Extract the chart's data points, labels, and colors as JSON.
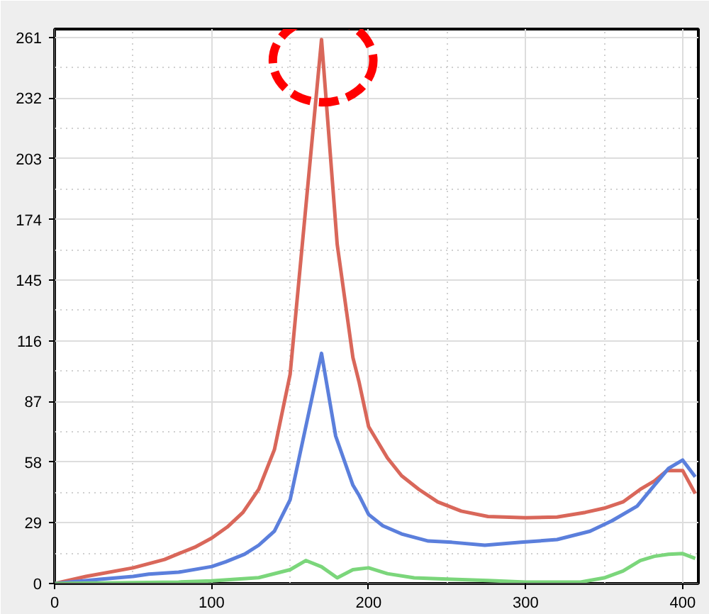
{
  "chart_data": {
    "type": "line",
    "xlim": [
      0,
      410
    ],
    "ylim": [
      0,
      265
    ],
    "xticks": [
      0,
      100,
      200,
      300,
      400
    ],
    "yticks": [
      0,
      29,
      58,
      87,
      116,
      145,
      174,
      203,
      232,
      261
    ],
    "grid": true,
    "marker": "none",
    "line_style": "solid",
    "series": [
      {
        "color": "#d9675a",
        "x": [
          0,
          20,
          50,
          70,
          90,
          100,
          110,
          120,
          130,
          140,
          150,
          170,
          180,
          190,
          194,
          200,
          212,
          221,
          232,
          244,
          259,
          276,
          300,
          320,
          338,
          350,
          362,
          373,
          382,
          390,
          400,
          408
        ],
        "values": [
          0,
          3.4,
          7.5,
          11.5,
          17.6,
          21.7,
          27,
          34,
          45,
          64,
          100,
          260,
          162,
          108,
          96,
          75,
          60,
          51.5,
          45,
          39,
          34.6,
          32,
          31.4,
          31.8,
          34,
          36,
          39,
          45,
          49,
          54,
          54,
          43
        ]
      },
      {
        "color": "#5b7fdc",
        "x": [
          0,
          29,
          50,
          60,
          79,
          100,
          109,
          121,
          130,
          140,
          150,
          170,
          179,
          190,
          194,
          200,
          209,
          221,
          238,
          253,
          274,
          297,
          320,
          341,
          355,
          371,
          382,
          391,
          400,
          408
        ],
        "values": [
          0,
          2,
          3.4,
          4.5,
          5.4,
          8.1,
          10.4,
          14,
          18.3,
          25,
          40,
          110,
          70.5,
          47,
          42,
          33,
          27.6,
          23.7,
          20.3,
          19.7,
          18.3,
          19.7,
          21,
          25,
          30,
          37,
          47,
          55,
          59,
          51
        ]
      },
      {
        "color": "#7bd67b",
        "x": [
          0,
          79,
          100,
          130,
          150,
          160,
          170,
          180,
          190,
          200,
          212,
          229,
          253,
          276,
          300,
          335,
          350,
          362,
          373,
          382,
          391,
          400,
          408
        ],
        "values": [
          0,
          0.7,
          1.3,
          2.8,
          6.6,
          11,
          8,
          2.7,
          6.6,
          7.5,
          4.7,
          2.7,
          2,
          1.4,
          0.7,
          0.7,
          2.7,
          6,
          11,
          13,
          14,
          14.3,
          12
        ]
      }
    ]
  }
}
